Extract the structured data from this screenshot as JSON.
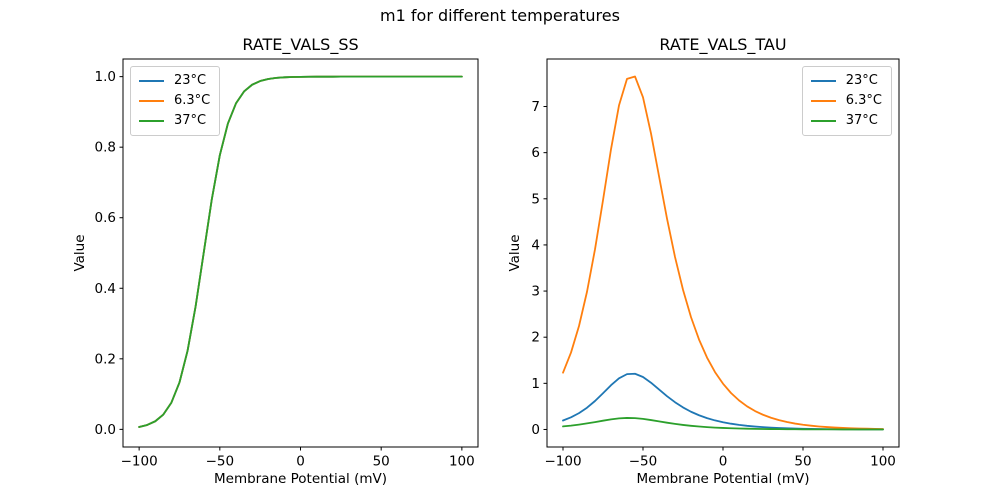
{
  "figure": {
    "suptitle": "m1 for different temperatures",
    "background": "#ffffff"
  },
  "palette": {
    "blue": "#1f77b4",
    "orange": "#ff7f0e",
    "green": "#2ca02c",
    "spine": "#000000",
    "legend_border": "#cccccc"
  },
  "chart_data": [
    {
      "type": "line",
      "title": "RATE_VALS_SS",
      "xlabel": "Membrane Potential (mV)",
      "ylabel": "Value",
      "grid": false,
      "xlim": [
        -110,
        110
      ],
      "ylim": [
        -0.05,
        1.05
      ],
      "xticks": [
        -100,
        -50,
        0,
        50,
        100
      ],
      "xtick_labels": [
        "−100",
        "−50",
        "0",
        "50",
        "100"
      ],
      "yticks": [
        0.0,
        0.2,
        0.4,
        0.6,
        0.8,
        1.0
      ],
      "ytick_labels": [
        "0.0",
        "0.2",
        "0.4",
        "0.6",
        "0.8",
        "1.0"
      ],
      "legend": {
        "position": "upper left",
        "entries": [
          "23°C",
          "6.3°C",
          "37°C"
        ]
      },
      "note": "all three temperature curves coincide exactly (sigmoid, half-activation ≈ −60 mV)",
      "x": [
        -100,
        -95,
        -90,
        -85,
        -80,
        -75,
        -70,
        -65,
        -60,
        -55,
        -50,
        -45,
        -40,
        -35,
        -30,
        -25,
        -20,
        -15,
        -10,
        -5,
        0,
        5,
        10,
        15,
        20,
        25,
        30,
        35,
        40,
        45,
        50,
        55,
        60,
        65,
        70,
        75,
        80,
        85,
        90,
        95,
        100
      ],
      "series": [
        {
          "name": "23°C",
          "color": "#1f77b4",
          "values": [
            0.0067,
            0.0124,
            0.023,
            0.0421,
            0.0759,
            0.133,
            0.2227,
            0.3486,
            0.5,
            0.6514,
            0.7773,
            0.867,
            0.9241,
            0.9579,
            0.977,
            0.9876,
            0.9933,
            0.9964,
            0.9981,
            0.999,
            0.9994,
            0.9997,
            0.9998,
            0.9999,
            0.9999,
            1,
            1,
            1,
            1,
            1,
            1,
            1,
            1,
            1,
            1,
            1,
            1,
            1,
            1,
            1,
            1
          ]
        },
        {
          "name": "6.3°C",
          "color": "#ff7f0e",
          "values": [
            0.0067,
            0.0124,
            0.023,
            0.0421,
            0.0759,
            0.133,
            0.2227,
            0.3486,
            0.5,
            0.6514,
            0.7773,
            0.867,
            0.9241,
            0.9579,
            0.977,
            0.9876,
            0.9933,
            0.9964,
            0.9981,
            0.999,
            0.9994,
            0.9997,
            0.9998,
            0.9999,
            0.9999,
            1,
            1,
            1,
            1,
            1,
            1,
            1,
            1,
            1,
            1,
            1,
            1,
            1,
            1,
            1,
            1
          ]
        },
        {
          "name": "37°C",
          "color": "#2ca02c",
          "values": [
            0.0067,
            0.0124,
            0.023,
            0.0421,
            0.0759,
            0.133,
            0.2227,
            0.3486,
            0.5,
            0.6514,
            0.7773,
            0.867,
            0.9241,
            0.9579,
            0.977,
            0.9876,
            0.9933,
            0.9964,
            0.9981,
            0.999,
            0.9994,
            0.9997,
            0.9998,
            0.9999,
            0.9999,
            1,
            1,
            1,
            1,
            1,
            1,
            1,
            1,
            1,
            1,
            1,
            1,
            1,
            1,
            1,
            1
          ]
        }
      ]
    },
    {
      "type": "line",
      "title": "RATE_VALS_TAU",
      "xlabel": "Membrane Potential (mV)",
      "ylabel": "Value",
      "grid": false,
      "xlim": [
        -110,
        110
      ],
      "ylim": [
        -0.38,
        8.03
      ],
      "xticks": [
        -100,
        -50,
        0,
        50,
        100
      ],
      "xtick_labels": [
        "−100",
        "−50",
        "0",
        "50",
        "100"
      ],
      "yticks": [
        0,
        1,
        2,
        3,
        4,
        5,
        6,
        7
      ],
      "ytick_labels": [
        "0",
        "1",
        "2",
        "3",
        "4",
        "5",
        "6",
        "7"
      ],
      "legend": {
        "position": "upper right",
        "entries": [
          "23°C",
          "6.3°C",
          "37°C"
        ]
      },
      "note": "bell-shaped time-constant curves peaking near −60 mV; peaks ≈ 1.2 (23°C), 7.6 (6.3°C), 0.25 (37°C)",
      "x": [
        -100,
        -95,
        -90,
        -85,
        -80,
        -75,
        -70,
        -65,
        -60,
        -55,
        -50,
        -45,
        -40,
        -35,
        -30,
        -25,
        -20,
        -15,
        -10,
        -5,
        0,
        5,
        10,
        15,
        20,
        25,
        30,
        35,
        40,
        45,
        50,
        55,
        60,
        65,
        70,
        75,
        80,
        85,
        90,
        95,
        100
      ],
      "series": [
        {
          "name": "23°C",
          "color": "#1f77b4",
          "values": [
            0.194,
            0.263,
            0.354,
            0.471,
            0.617,
            0.785,
            0.959,
            1.109,
            1.2,
            1.208,
            1.137,
            1.013,
            0.867,
            0.722,
            0.591,
            0.478,
            0.384,
            0.308,
            0.246,
            0.196,
            0.157,
            0.125,
            0.0995,
            0.0793,
            0.0632,
            0.0504,
            0.0401,
            0.032,
            0.0255,
            0.0203,
            0.0162,
            0.0129,
            0.0103,
            0.0082,
            0.0065,
            0.0052,
            0.0041,
            0.0033,
            0.0026,
            0.0021,
            0.0017
          ]
        },
        {
          "name": "6.3°C",
          "color": "#ff7f0e",
          "values": [
            1.231,
            1.667,
            2.243,
            2.985,
            3.905,
            4.968,
            6.073,
            7.024,
            7.6,
            7.651,
            7.2,
            6.416,
            5.491,
            4.572,
            3.74,
            3.028,
            2.435,
            1.951,
            1.559,
            1.244,
            0.993,
            0.791,
            0.63,
            0.502,
            0.4,
            0.319,
            0.254,
            0.202,
            0.161,
            0.128,
            0.102,
            0.0816,
            0.065,
            0.0518,
            0.0413,
            0.0329,
            0.0262,
            0.0209,
            0.0166,
            0.0132,
            0.0105
          ]
        },
        {
          "name": "37°C",
          "color": "#2ca02c",
          "values": [
            0.0662,
            0.0839,
            0.1055,
            0.1312,
            0.1602,
            0.1906,
            0.219,
            0.2403,
            0.25,
            0.2458,
            0.2292,
            0.2041,
            0.1754,
            0.147,
            0.121,
            0.0984,
            0.0794,
            0.0638,
            0.0511,
            0.0408,
            0.0326,
            0.026,
            0.0207,
            0.0165,
            0.0132,
            0.0105,
            0.0084,
            0.0067,
            0.0053,
            0.0042,
            0.0034,
            0.0027,
            0.0021,
            0.0017,
            0.0014,
            0.0011,
            0.0009,
            0.0007,
            0.0005,
            0.0004,
            0.0003
          ]
        }
      ]
    }
  ]
}
